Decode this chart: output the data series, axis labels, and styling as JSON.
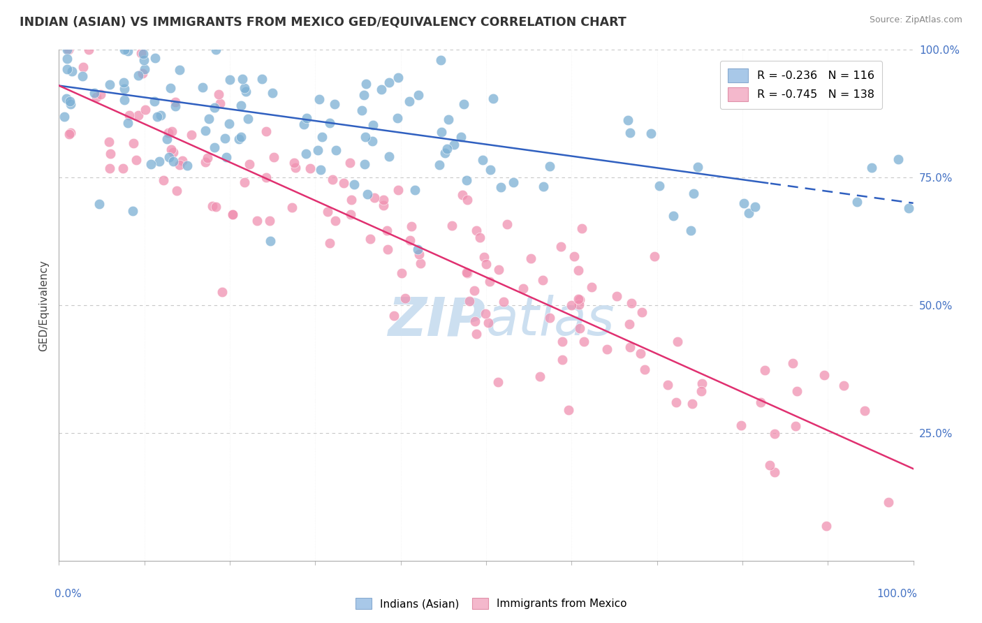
{
  "title": "INDIAN (ASIAN) VS IMMIGRANTS FROM MEXICO GED/EQUIVALENCY CORRELATION CHART",
  "source": "Source: ZipAtlas.com",
  "ylabel": "GED/Equivalency",
  "legend_entries": [
    {
      "label": "R = -0.236   N = 116",
      "color": "#a8c4e0"
    },
    {
      "label": "R = -0.745   N = 138",
      "color": "#f4b8c8"
    }
  ],
  "legend_names": [
    "Indians (Asian)",
    "Immigrants from Mexico"
  ],
  "background_color": "#ffffff",
  "scatter_blue_color": "#7bafd4",
  "scatter_pink_color": "#f090b0",
  "line_blue_color": "#3060c0",
  "line_pink_color": "#e03070",
  "watermark_color": "#ccdff0",
  "R_blue": -0.236,
  "N_blue": 116,
  "R_pink": -0.745,
  "N_pink": 138,
  "xlim": [
    0,
    1
  ],
  "ylim": [
    0,
    1
  ],
  "blue_line_x0": 0.0,
  "blue_line_y0": 0.93,
  "blue_line_x1": 1.0,
  "blue_line_y1": 0.7,
  "blue_line_solid_end": 0.83,
  "pink_line_x0": 0.0,
  "pink_line_y0": 0.93,
  "pink_line_x1": 1.0,
  "pink_line_y1": 0.18
}
